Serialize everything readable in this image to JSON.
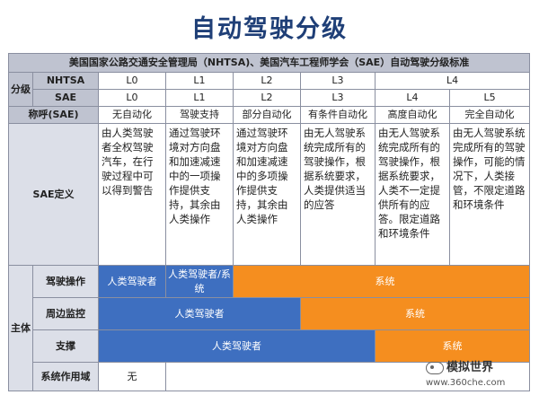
{
  "title": "自动驾驶分级",
  "table": {
    "header": "美国国家公路交通安全管理局（NHTSA)、美国汽车工程师学会（SAE）自动驾驶分级标准",
    "level_label": "分级",
    "nhtsa_label": "NHTSA",
    "nhtsa_levels": [
      "L0",
      "L1",
      "L2",
      "L3",
      "L4"
    ],
    "sae_label": "SAE",
    "sae_levels": [
      "L0",
      "L1",
      "L2",
      "L3",
      "L4",
      "L5"
    ],
    "name_label": "称呼(SAE)",
    "names": [
      "无自动化",
      "驾驶支持",
      "部分自动化",
      "有条件自动化",
      "高度自动化",
      "完全自动化"
    ],
    "definition_label": "SAE定义",
    "definitions": [
      "由人类驾驶者全权驾驶汽车，在行驶过程中可以得到警告",
      "通过驾驶环境对方向盘和加速减速中的一项操作提供支持，其余由人类操作",
      "通过驾驶环境对方向盘和加速减速中的多项操作提供支持，其余由人类操作",
      "由无人驾驶系统完成所有的驾驶操作，根据系统要求，人类提供适当的应答",
      "由无人驾驶系统完成所有的驾驶操作，根据系统要求，人类不一定提供所有的应答。限定道路和环境条件",
      "由无人驾驶系统完成所有的驾驶操作，可能的情况下，人类接管，不限定道路和环境条件"
    ],
    "subject_label": "主体",
    "rows": {
      "driving": {
        "label": "驾驶操作",
        "human": "人类驾驶者",
        "mixed": "人类驾驶者/系统",
        "system": "系统"
      },
      "monitoring": {
        "label": "周边监控",
        "human": "人类驾驶者",
        "system": "系统"
      },
      "support": {
        "label": "支撑",
        "human": "人类驾驶者",
        "system": "系统"
      },
      "scope": {
        "label": "系统作用域",
        "none": "无"
      }
    }
  },
  "watermark": {
    "name": "模拟世界",
    "url": "www.360che.com"
  },
  "colors": {
    "title": "#1f3f77",
    "header_bg": "#bfc3d0",
    "human": "#3e6fc0",
    "system": "#f58e1f"
  }
}
